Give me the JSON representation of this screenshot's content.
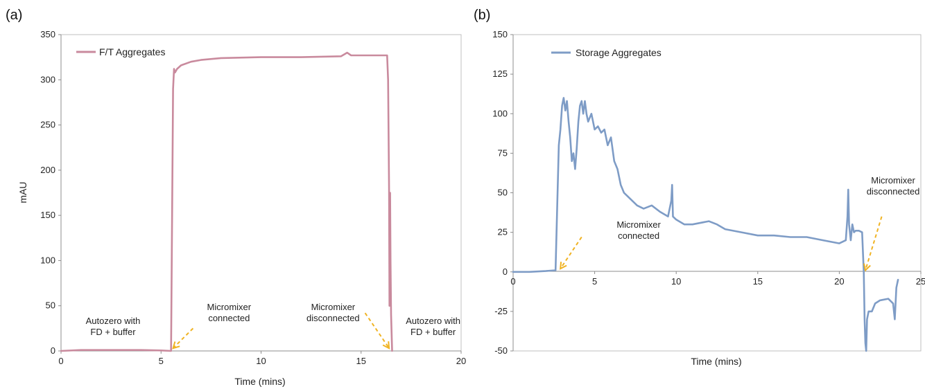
{
  "chart_data": [
    {
      "type": "line",
      "panel_label": "(a)",
      "title": "",
      "xlabel": "Time (mins)",
      "ylabel": "mAU",
      "xlim": [
        0,
        20
      ],
      "ylim": [
        0,
        350
      ],
      "x_ticks": [
        0,
        5,
        10,
        15,
        20
      ],
      "y_ticks": [
        0,
        50,
        100,
        150,
        200,
        250,
        300,
        350
      ],
      "grid": false,
      "legend_position": "top-left",
      "series": [
        {
          "name": "F/T Aggregates",
          "color": "#c98a9d",
          "x": [
            0,
            1,
            2,
            3,
            4,
            5,
            5.5,
            5.6,
            5.65,
            5.7,
            5.8,
            6,
            6.5,
            7,
            8,
            10,
            12,
            14,
            14.3,
            14.5,
            16,
            16.2,
            16.3,
            16.35,
            16.4,
            16.42,
            16.44,
            16.45,
            16.47,
            16.5,
            16.55
          ],
          "values": [
            0,
            1,
            1,
            1,
            1,
            0.5,
            0,
            290,
            312,
            308,
            312,
            316,
            320,
            322,
            324,
            325,
            325,
            326,
            330,
            327,
            327,
            327,
            327,
            300,
            180,
            50,
            170,
            175,
            100,
            40,
            0
          ]
        }
      ],
      "annotations": [
        {
          "lines": [
            "Autozero with",
            "FD + buffer"
          ],
          "x": 2.6,
          "y": 30,
          "arrow": false
        },
        {
          "lines": [
            "Micromixer",
            "connected"
          ],
          "x": 8.4,
          "y": 45,
          "arrow_from": [
            6.6,
            25
          ],
          "arrow_to": [
            5.6,
            3
          ]
        },
        {
          "lines": [
            "Micromixer",
            "disconnected"
          ],
          "x": 13.6,
          "y": 45,
          "arrow_from": [
            15.2,
            42
          ],
          "arrow_to": [
            16.4,
            3
          ]
        },
        {
          "lines": [
            "Autozero with",
            "FD + buffer"
          ],
          "x": 18.6,
          "y": 30,
          "arrow": false
        }
      ]
    },
    {
      "type": "line",
      "panel_label": "(b)",
      "title": "",
      "xlabel": "Time (mins)",
      "ylabel": "",
      "xlim": [
        0,
        25
      ],
      "ylim": [
        -50,
        150
      ],
      "x_ticks": [
        0,
        5,
        10,
        15,
        20,
        25
      ],
      "y_ticks": [
        -50,
        -25,
        0,
        25,
        50,
        75,
        100,
        125,
        150
      ],
      "grid": false,
      "legend_position": "top-left",
      "series": [
        {
          "name": "Storage Aggregates",
          "color": "#7e9cc6",
          "x": [
            0,
            1,
            2,
            2.6,
            2.7,
            2.8,
            2.9,
            3.0,
            3.1,
            3.2,
            3.3,
            3.4,
            3.5,
            3.6,
            3.7,
            3.8,
            3.9,
            4.0,
            4.1,
            4.2,
            4.3,
            4.4,
            4.5,
            4.6,
            4.8,
            5.0,
            5.2,
            5.4,
            5.6,
            5.8,
            6.0,
            6.2,
            6.4,
            6.6,
            6.8,
            7.0,
            7.3,
            7.6,
            8.0,
            8.5,
            9.0,
            9.5,
            9.7,
            9.75,
            9.8,
            10.0,
            10.5,
            11.0,
            12.0,
            12.5,
            13.0,
            14.0,
            15.0,
            16.0,
            17.0,
            18.0,
            19.0,
            20.0,
            20.4,
            20.5,
            20.55,
            20.6,
            20.7,
            20.8,
            20.9,
            21.0,
            21.2,
            21.4,
            21.5,
            21.55,
            21.6,
            21.65,
            21.7,
            21.8,
            22.0,
            22.2,
            22.5,
            23.0,
            23.3,
            23.4,
            23.5,
            23.6
          ],
          "values": [
            0,
            0,
            0.5,
            1,
            40,
            80,
            90,
            105,
            110,
            102,
            108,
            95,
            85,
            70,
            75,
            65,
            78,
            95,
            105,
            108,
            100,
            108,
            100,
            95,
            100,
            90,
            92,
            88,
            90,
            80,
            85,
            70,
            65,
            55,
            50,
            48,
            45,
            42,
            40,
            42,
            38,
            35,
            45,
            55,
            35,
            33,
            30,
            30,
            32,
            30,
            27,
            25,
            23,
            23,
            22,
            22,
            20,
            18,
            20,
            35,
            52,
            30,
            20,
            30,
            25,
            26,
            26,
            25,
            0,
            -30,
            -45,
            -50,
            -30,
            -25,
            -25,
            -20,
            -18,
            -17,
            -20,
            -30,
            -10,
            -5
          ]
        }
      ],
      "annotations": [
        {
          "lines": [
            "Micromixer",
            "connected"
          ],
          "x": 7.7,
          "y": 28,
          "arrow_from": [
            4.2,
            22
          ],
          "arrow_to": [
            2.9,
            2
          ]
        },
        {
          "lines": [
            "Micromixer",
            "disconnected"
          ],
          "x": 23.3,
          "y": 56,
          "arrow_from": [
            22.6,
            35
          ],
          "arrow_to": [
            21.6,
            1
          ]
        }
      ]
    }
  ]
}
